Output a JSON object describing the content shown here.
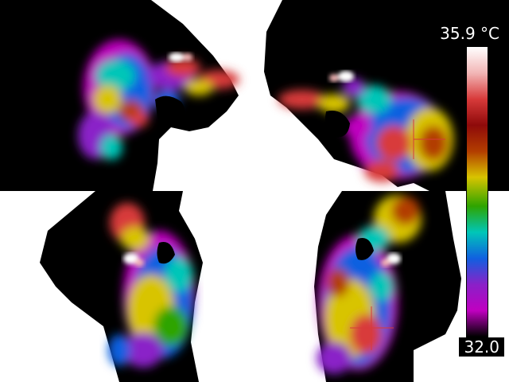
{
  "scale": {
    "max_label": "35.9 °C",
    "min_label": "32.0"
  },
  "palette": {
    "stops": [
      "#ffffff",
      "#f2b6b6",
      "#d83a3a",
      "#8e0a0a",
      "#b23d00",
      "#d8c400",
      "#2ea400",
      "#00c6b8",
      "#1060e0",
      "#8a20c8",
      "#c000c0",
      "#000000"
    ],
    "background": "#ffffff",
    "silhouette": "#000000"
  }
}
